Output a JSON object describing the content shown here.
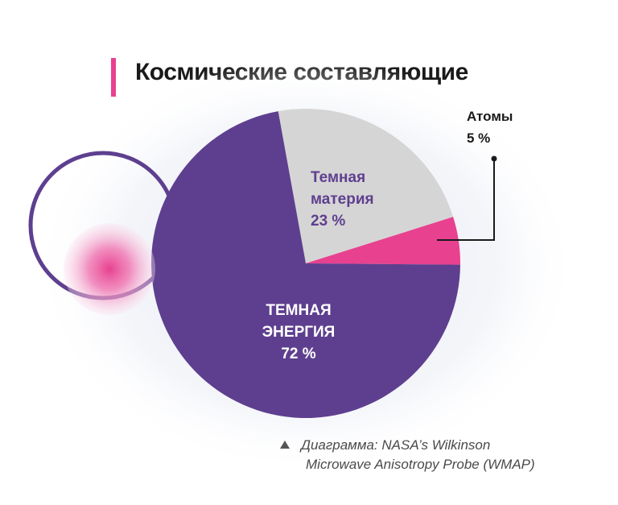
{
  "title": "Космические составляющие",
  "caption": {
    "line1": "Диаграмма: NASA’s Wilkinson",
    "line2": "Microwave Anisotropy Probe (WMAP)"
  },
  "colors": {
    "accent": "#e8418f",
    "dark_energy": "#5e3f8f",
    "dark_matter": "#d6d5d5",
    "atoms": "#e8418f",
    "ring": "#5e3f8f"
  },
  "chart_data": {
    "type": "pie",
    "title": "Космические составляющие",
    "slices": [
      {
        "label": "Темная материя",
        "label_lines": [
          "Темная",
          "материя"
        ],
        "value_text": "23 %",
        "value": 23,
        "color": "#d6d5d5"
      },
      {
        "label": "Атомы",
        "label_lines": [
          "Атомы"
        ],
        "value_text": "5 %",
        "value": 5,
        "color": "#e8418f"
      },
      {
        "label": "ТЕМНАЯ ЭНЕРГИЯ",
        "label_lines": [
          "ТЕМНАЯ",
          "ЭНЕРГИЯ"
        ],
        "value_text": "72 %",
        "value": 72,
        "color": "#5e3f8f"
      }
    ]
  }
}
